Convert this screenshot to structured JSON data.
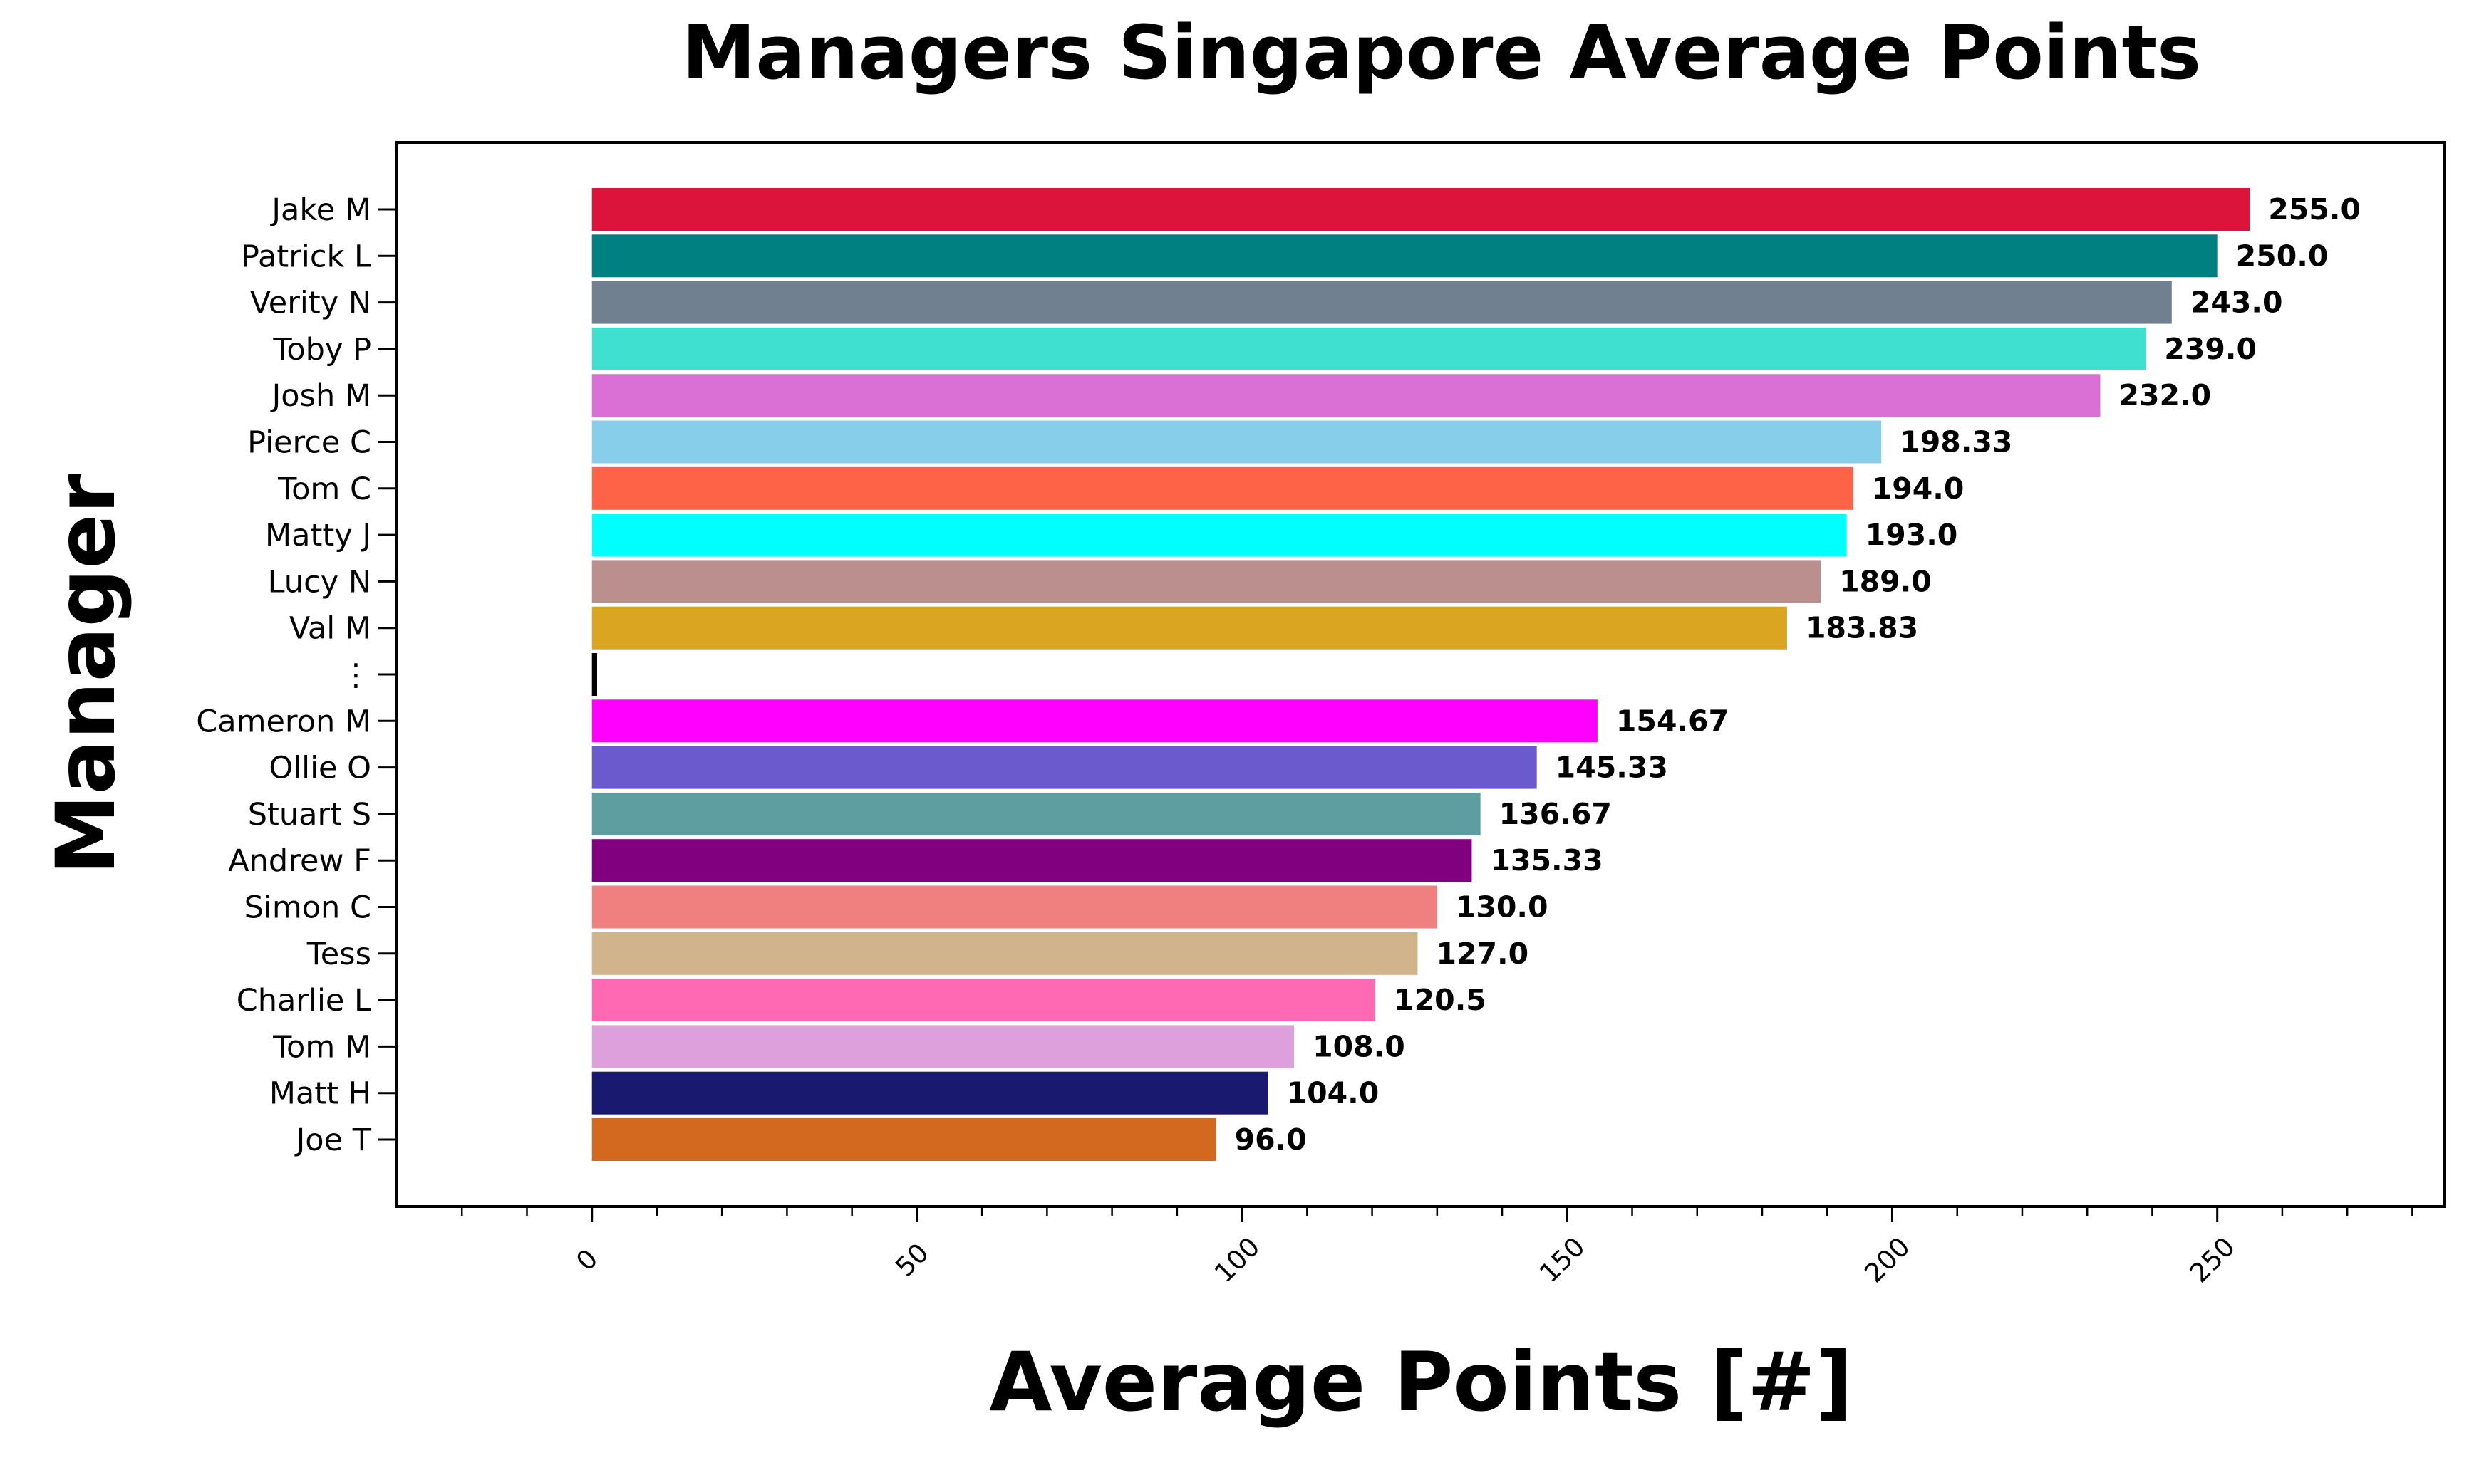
{
  "chart_data": {
    "type": "bar",
    "orientation": "horizontal",
    "title": "Managers Singapore Average Points",
    "xlabel": "Average Points [#]",
    "ylabel": "Manager",
    "xlim": [
      -30,
      285
    ],
    "xticks": [
      "0",
      "50",
      "100",
      "150",
      "200",
      "250"
    ],
    "xtick_values": [
      0,
      50,
      100,
      150,
      200,
      250
    ],
    "grid": false,
    "legend": "none",
    "bars": [
      {
        "label": "Jake M",
        "value": 255.0,
        "display": "255.0",
        "color": "#dc143c"
      },
      {
        "label": "Patrick L",
        "value": 250.0,
        "display": "250.0",
        "color": "#008080"
      },
      {
        "label": "Verity N",
        "value": 243.0,
        "display": "243.0",
        "color": "#708090"
      },
      {
        "label": "Toby P",
        "value": 239.0,
        "display": "239.0",
        "color": "#40e0d0"
      },
      {
        "label": "Josh M",
        "value": 232.0,
        "display": "232.0",
        "color": "#da70d6"
      },
      {
        "label": "Pierce C",
        "value": 198.33,
        "display": "198.33",
        "color": "#87ceeb"
      },
      {
        "label": "Tom C",
        "value": 194.0,
        "display": "194.0",
        "color": "#ff6347"
      },
      {
        "label": "Matty J",
        "value": 193.0,
        "display": "193.0",
        "color": "#00ffff"
      },
      {
        "label": "Lucy N",
        "value": 189.0,
        "display": "189.0",
        "color": "#bc8f8f"
      },
      {
        "label": "Val M",
        "value": 183.83,
        "display": "183.83",
        "color": "#daa520"
      },
      {
        "label": "⋮",
        "value": 0.8,
        "display": "",
        "color": "#000000"
      },
      {
        "label": "Cameron M",
        "value": 154.67,
        "display": "154.67",
        "color": "#ff00ff"
      },
      {
        "label": "Ollie O",
        "value": 145.33,
        "display": "145.33",
        "color": "#6a5acd"
      },
      {
        "label": "Stuart S",
        "value": 136.67,
        "display": "136.67",
        "color": "#5f9ea0"
      },
      {
        "label": "Andrew F",
        "value": 135.33,
        "display": "135.33",
        "color": "#800080"
      },
      {
        "label": "Simon C",
        "value": 130.0,
        "display": "130.0",
        "color": "#f08080"
      },
      {
        "label": "Tess",
        "value": 127.0,
        "display": "127.0",
        "color": "#d2b48c"
      },
      {
        "label": "Charlie L",
        "value": 120.5,
        "display": "120.5",
        "color": "#ff69b4"
      },
      {
        "label": "Tom M",
        "value": 108.0,
        "display": "108.0",
        "color": "#dda0dd"
      },
      {
        "label": "Matt H",
        "value": 104.0,
        "display": "104.0",
        "color": "#191970"
      },
      {
        "label": "Joe T",
        "value": 96.0,
        "display": "96.0",
        "color": "#d2691e"
      }
    ]
  }
}
